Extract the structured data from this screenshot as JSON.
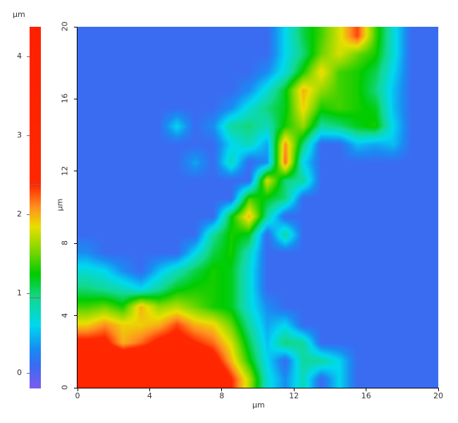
{
  "chart_data": {
    "type": "heatmap",
    "title": "",
    "xlabel": "µm",
    "ylabel": "µm",
    "xlim": [
      0,
      20
    ],
    "ylim": [
      0,
      20
    ],
    "xticks": [
      "0",
      "4",
      "8",
      "12",
      "16",
      "20"
    ],
    "yticks": [
      "0",
      "4",
      "8",
      "12",
      "16",
      "20"
    ],
    "grid": false,
    "colorbar": {
      "label": "µm",
      "range": [
        -0.19,
        4.37
      ],
      "ticks": [
        "0",
        "1",
        "2",
        "3",
        "4"
      ],
      "marker_lines": [
        0.95,
        2.38
      ],
      "colormap": [
        {
          "v": -0.19,
          "c": "#7b5cf0"
        },
        {
          "v": 0.1,
          "c": "#3a6cf2"
        },
        {
          "v": 0.3,
          "c": "#1a8cf2"
        },
        {
          "v": 0.6,
          "c": "#00d8f0"
        },
        {
          "v": 0.95,
          "c": "#12d890"
        },
        {
          "v": 1.25,
          "c": "#00cc00"
        },
        {
          "v": 1.55,
          "c": "#80d800"
        },
        {
          "v": 1.85,
          "c": "#e8e000"
        },
        {
          "v": 2.1,
          "c": "#ff9020"
        },
        {
          "v": 2.38,
          "c": "#ff2800"
        },
        {
          "v": 4.37,
          "c": "#ff2000"
        }
      ]
    },
    "x_centers": [
      0.5,
      1.5,
      2.5,
      3.5,
      4.5,
      5.5,
      6.5,
      7.5,
      8.5,
      9.5,
      10.5,
      11.5,
      12.5,
      13.5,
      14.5,
      15.5,
      16.5,
      17.5,
      18.5,
      19.5
    ],
    "y_centers_top_to_bottom": [
      19.5,
      18.5,
      17.5,
      16.5,
      15.5,
      14.5,
      13.5,
      12.5,
      11.5,
      10.5,
      9.5,
      8.5,
      7.5,
      6.5,
      5.5,
      4.5,
      3.5,
      2.5,
      1.5,
      0.5
    ],
    "z": [
      [
        0.1,
        0.1,
        0.1,
        0.1,
        0.1,
        0.1,
        0.1,
        0.1,
        0.1,
        0.1,
        0.1,
        0.6,
        1.1,
        1.4,
        1.8,
        2.3,
        1.4,
        0.7,
        0.1,
        0.1
      ],
      [
        0.1,
        0.1,
        0.1,
        0.1,
        0.1,
        0.1,
        0.1,
        0.1,
        0.1,
        0.1,
        0.1,
        0.6,
        1.0,
        1.5,
        1.8,
        1.5,
        1.3,
        0.7,
        0.1,
        0.1
      ],
      [
        0.1,
        0.1,
        0.1,
        0.1,
        0.1,
        0.1,
        0.1,
        0.1,
        0.1,
        0.1,
        0.3,
        0.7,
        1.3,
        1.9,
        1.4,
        1.3,
        1.1,
        0.6,
        0.1,
        0.1
      ],
      [
        0.1,
        0.1,
        0.1,
        0.1,
        0.1,
        0.1,
        0.1,
        0.1,
        0.1,
        0.3,
        0.7,
        1.2,
        2.0,
        1.6,
        1.4,
        1.3,
        1.0,
        0.5,
        0.1,
        0.1
      ],
      [
        0.1,
        0.1,
        0.1,
        0.1,
        0.1,
        0.1,
        0.1,
        0.1,
        0.3,
        0.7,
        1.0,
        1.2,
        1.9,
        1.3,
        1.4,
        1.3,
        1.2,
        0.5,
        0.1,
        0.1
      ],
      [
        0.1,
        0.1,
        0.1,
        0.1,
        0.1,
        0.6,
        0.1,
        0.3,
        0.9,
        1.0,
        0.8,
        1.3,
        1.6,
        0.9,
        1.0,
        1.2,
        1.3,
        0.6,
        0.1,
        0.1
      ],
      [
        0.1,
        0.1,
        0.1,
        0.1,
        0.1,
        0.1,
        0.1,
        0.1,
        0.6,
        0.8,
        0.4,
        2.1,
        1.0,
        0.1,
        0.1,
        0.5,
        0.4,
        0.5,
        0.1,
        0.1
      ],
      [
        0.1,
        0.1,
        0.1,
        0.1,
        0.1,
        0.1,
        0.4,
        0.1,
        0.8,
        0.1,
        0.3,
        2.2,
        0.6,
        0.1,
        0.1,
        0.1,
        0.1,
        0.1,
        0.1,
        0.1
      ],
      [
        0.1,
        0.1,
        0.1,
        0.1,
        0.1,
        0.1,
        0.1,
        0.1,
        0.1,
        0.1,
        1.8,
        1.0,
        0.9,
        0.1,
        0.1,
        0.1,
        0.1,
        0.1,
        0.1,
        0.1
      ],
      [
        0.1,
        0.1,
        0.1,
        0.1,
        0.1,
        0.1,
        0.1,
        0.1,
        0.1,
        1.4,
        1.2,
        1.0,
        0.1,
        0.1,
        0.1,
        0.1,
        0.1,
        0.1,
        0.1,
        0.1
      ],
      [
        0.1,
        0.1,
        0.1,
        0.1,
        0.1,
        0.1,
        0.1,
        0.1,
        1.2,
        2.0,
        0.9,
        0.1,
        0.1,
        0.1,
        0.1,
        0.1,
        0.1,
        0.1,
        0.1,
        0.1
      ],
      [
        0.1,
        0.1,
        0.1,
        0.1,
        0.1,
        0.1,
        0.1,
        0.9,
        1.3,
        1.2,
        0.1,
        0.9,
        0.1,
        0.1,
        0.1,
        0.1,
        0.1,
        0.1,
        0.1,
        0.1
      ],
      [
        0.3,
        0.1,
        0.1,
        0.1,
        0.1,
        0.1,
        0.6,
        1.1,
        1.3,
        0.8,
        0.1,
        0.1,
        0.1,
        0.1,
        0.1,
        0.1,
        0.1,
        0.1,
        0.1,
        0.1
      ],
      [
        0.7,
        0.6,
        0.3,
        0.1,
        0.5,
        0.8,
        1.1,
        1.3,
        1.2,
        0.7,
        0.1,
        0.1,
        0.1,
        0.1,
        0.1,
        0.1,
        0.1,
        0.1,
        0.1,
        0.1
      ],
      [
        1.0,
        0.9,
        0.8,
        0.6,
        0.9,
        1.2,
        1.3,
        1.3,
        1.2,
        0.7,
        0.1,
        0.1,
        0.1,
        0.1,
        0.1,
        0.1,
        0.1,
        0.1,
        0.1,
        0.1
      ],
      [
        1.4,
        1.5,
        1.3,
        2.0,
        1.6,
        1.7,
        1.5,
        1.3,
        1.2,
        0.7,
        0.3,
        0.1,
        0.1,
        0.1,
        0.1,
        0.1,
        0.1,
        0.1,
        0.1,
        0.1
      ],
      [
        1.9,
        2.1,
        1.9,
        1.9,
        2.0,
        2.3,
        2.0,
        1.9,
        1.5,
        0.9,
        0.4,
        0.6,
        0.1,
        0.1,
        0.1,
        0.1,
        0.1,
        0.1,
        0.1,
        0.1
      ],
      [
        2.5,
        2.5,
        2.0,
        2.2,
        2.5,
        2.6,
        2.4,
        2.2,
        1.8,
        1.1,
        0.5,
        1.0,
        0.9,
        0.1,
        0.1,
        0.1,
        0.1,
        0.1,
        0.1,
        0.1
      ],
      [
        3.0,
        3.0,
        3.0,
        3.0,
        3.0,
        3.0,
        3.0,
        2.6,
        2.0,
        1.3,
        0.6,
        0.1,
        0.9,
        0.9,
        0.6,
        0.1,
        0.1,
        0.1,
        0.1,
        0.1
      ],
      [
        3.0,
        3.0,
        3.0,
        3.0,
        3.0,
        3.0,
        3.0,
        3.0,
        2.4,
        1.7,
        0.7,
        0.3,
        0.8,
        0.1,
        0.6,
        0.1,
        0.1,
        0.1,
        0.1,
        0.1
      ]
    ]
  }
}
